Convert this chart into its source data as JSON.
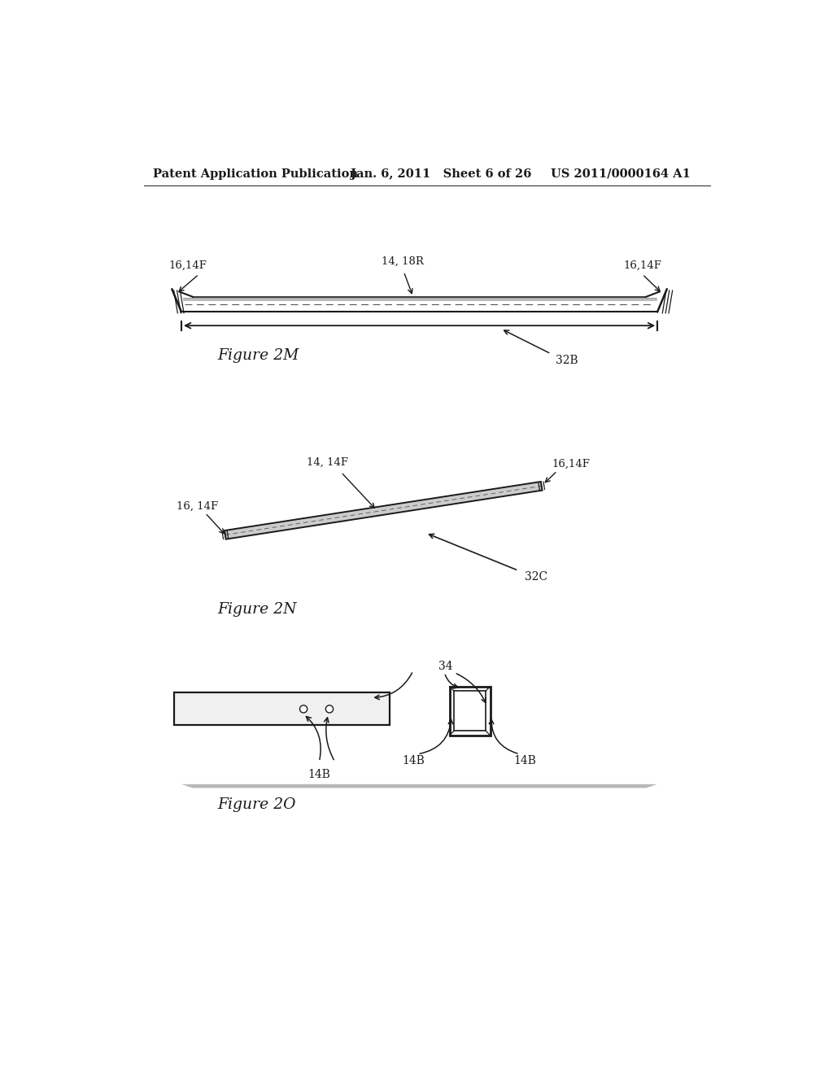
{
  "bg_color": "#ffffff",
  "text_color": "#1a1a1a",
  "line_color": "#1a1a1a",
  "header_left": "Patent Application Publication",
  "header_mid": "Jan. 6, 2011   Sheet 6 of 26",
  "header_right": "US 2011/0000164 A1",
  "fig2M_label": "Figure 2M",
  "fig2N_label": "Figure 2N",
  "fig2O_label": "Figure 2O",
  "label_32B": "32B",
  "label_32C": "32C",
  "label_34": "34",
  "label_16_14F_left_2M": "16,14F",
  "label_14_18R_2M": "14, 18R",
  "label_16_14F_right_2M": "16,14F",
  "label_14_14F_2N": "14, 14F",
  "label_16_14F_left_2N": "16, 14F",
  "label_16_14F_right_2N": "16,14F",
  "label_14B_1": "14B",
  "label_14B_2": "14B",
  "label_14B_3": "14B"
}
